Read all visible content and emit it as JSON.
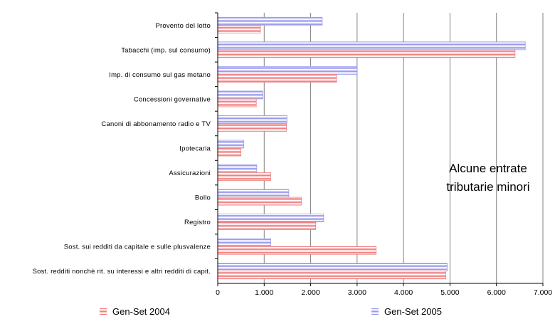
{
  "chart_data": {
    "type": "bar",
    "orientation": "horizontal",
    "categories": [
      "Provento del lotto",
      "Tabacchi (imp. sul consumo)",
      "Imp. di consumo sul gas metano",
      "Concessioni governative",
      "Canoni di abbonamento radio e TV",
      "Ipotecaria",
      "Assicurazioni",
      "Bollo",
      "Registro",
      "Sost. sui redditi da capitale e sulle plusvalenze",
      "Sost. redditi nonchè rit. su interessi e altri redditi di capit."
    ],
    "series": [
      {
        "name": "Gen-Set 2004",
        "color": "#f08080",
        "values": [
          920,
          6400,
          2560,
          830,
          1480,
          500,
          1140,
          1800,
          2110,
          3410,
          4910
        ]
      },
      {
        "name": "Gen-Set 2005",
        "color": "#9999ee",
        "values": [
          2250,
          6620,
          3000,
          970,
          1490,
          560,
          840,
          1530,
          2280,
          1140,
          4940
        ]
      }
    ],
    "xlim": [
      0,
      7000
    ],
    "xticks": [
      "0",
      "1.000",
      "2.000",
      "3.000",
      "4.000",
      "5.000",
      "6.000",
      "7.000"
    ],
    "grid": "vertical",
    "legend_position": "bottom",
    "annotation": [
      "Alcune entrate",
      "tributarie minori"
    ]
  }
}
